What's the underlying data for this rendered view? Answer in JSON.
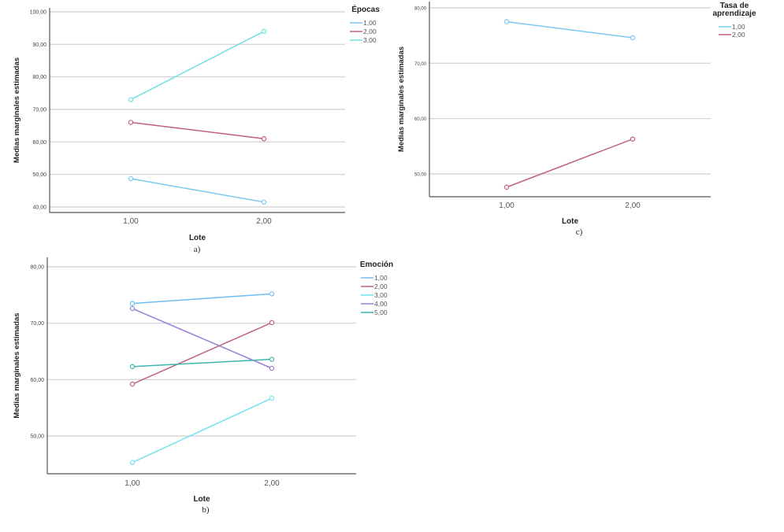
{
  "chart_data": [
    {
      "id": "a",
      "type": "line",
      "caption": "a)",
      "xlabel": "Lote",
      "ylabel": "Medias marginales estimadas",
      "categories": [
        "1,00",
        "2,00"
      ],
      "ylim": [
        40,
        100
      ],
      "yticks": [
        40,
        50,
        60,
        70,
        80,
        90,
        100
      ],
      "ytick_labels": [
        "40,00",
        "50,00",
        "60,00",
        "70,00",
        "80,00",
        "90,00",
        "100,00"
      ],
      "grid": true,
      "legend": {
        "title": "Épocas",
        "position": "top-right"
      },
      "series": [
        {
          "name": "1,00",
          "color": "#7cc7f2",
          "values": [
            48.7,
            41.5
          ]
        },
        {
          "name": "2,00",
          "color": "#c0607e",
          "values": [
            66.0,
            61.0
          ]
        },
        {
          "name": "3,00",
          "color": "#6fe0e6",
          "values": [
            73.0,
            94.0
          ]
        }
      ]
    },
    {
      "id": "c",
      "type": "line",
      "caption": "c)",
      "xlabel": "Lote",
      "ylabel": "Medias marginales estimadas",
      "categories": [
        "1,00",
        "2,00"
      ],
      "ylim": [
        50,
        80
      ],
      "yticks": [
        50,
        60,
        70,
        80
      ],
      "ytick_labels": [
        "50,00",
        "60,00",
        "70,00",
        "80,00"
      ],
      "grid": true,
      "legend": {
        "title": "Tasa de aprendizaje",
        "title_lines": [
          "Tasa de",
          "aprendizaje"
        ],
        "position": "top-right"
      },
      "series": [
        {
          "name": "1,00",
          "color": "#7cc7f2",
          "values": [
            77.5,
            74.6
          ]
        },
        {
          "name": "2,00",
          "color": "#c0607e",
          "values": [
            47.6,
            56.3
          ]
        }
      ]
    },
    {
      "id": "b",
      "type": "line",
      "caption": "b)",
      "xlabel": "Lote",
      "ylabel": "Medias marginales estimadas",
      "categories": [
        "1,00",
        "2,00"
      ],
      "ylim": [
        50,
        80
      ],
      "yticks": [
        50,
        60,
        70,
        80
      ],
      "ytick_labels": [
        "50,00",
        "60,00",
        "70,00",
        "80,00"
      ],
      "grid": true,
      "legend": {
        "title": "Emoción",
        "position": "top-right"
      },
      "series": [
        {
          "name": "1,00",
          "color": "#6cbdf0",
          "values": [
            73.5,
            75.2
          ]
        },
        {
          "name": "2,00",
          "color": "#c0607e",
          "values": [
            59.2,
            70.1
          ]
        },
        {
          "name": "3,00",
          "color": "#76e4ea",
          "values": [
            45.3,
            56.7
          ]
        },
        {
          "name": "4,00",
          "color": "#9a7fd6",
          "values": [
            72.6,
            62.0
          ]
        },
        {
          "name": "5,00",
          "color": "#3fb3b0",
          "values": [
            62.3,
            63.6
          ]
        }
      ]
    }
  ]
}
